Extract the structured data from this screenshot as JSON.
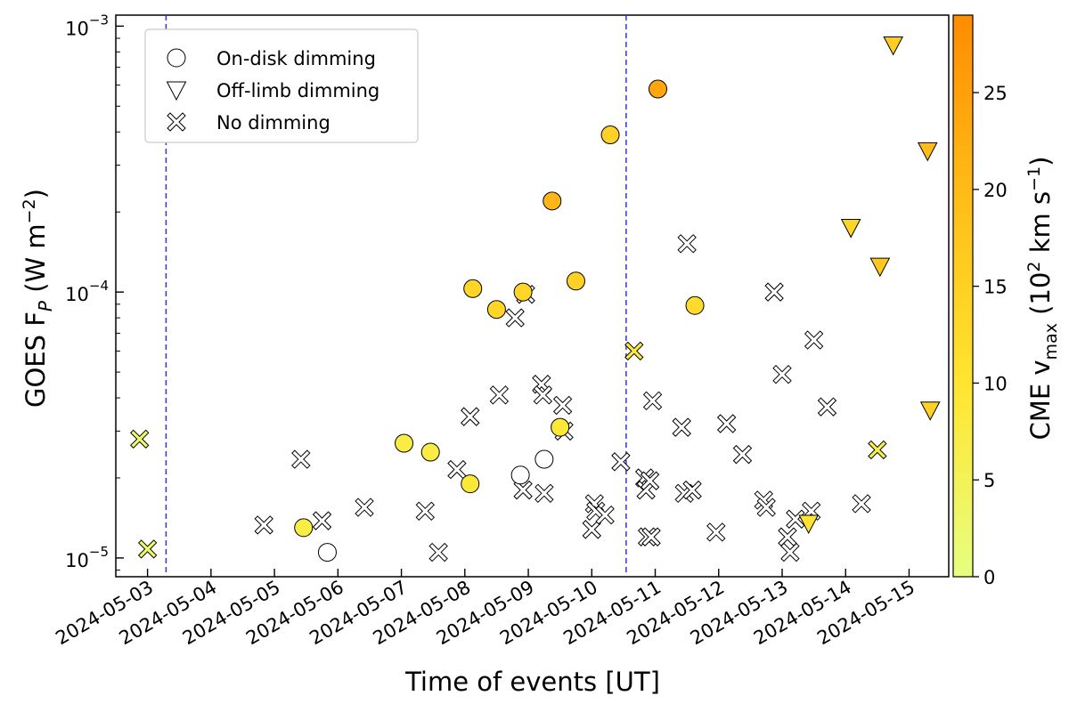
{
  "chart_data": {
    "type": "scatter",
    "xlabel": "Time of events [UT]",
    "ylabel": "GOES F_P (W m^-2)",
    "yscale": "log",
    "ylim": [
      8.5e-06,
      0.0011
    ],
    "y_ticks": [
      {
        "label_base": "10",
        "label_exp": "-3",
        "value": 0.001
      },
      {
        "label_base": "10",
        "label_exp": "-4",
        "value": 0.0001
      },
      {
        "label_base": "10",
        "label_exp": "-5",
        "value": 1e-05
      }
    ],
    "xlim": [
      "2024-05-02 12:00",
      "2024-05-15 15:00"
    ],
    "x_ticks": [
      "2024-05-03",
      "2024-05-04",
      "2024-05-05",
      "2024-05-06",
      "2024-05-07",
      "2024-05-08",
      "2024-05-09",
      "2024-05-10",
      "2024-05-11",
      "2024-05-12",
      "2024-05-13",
      "2024-05-14",
      "2024-05-15"
    ],
    "vertical_lines": [
      "2024-05-03 07:00",
      "2024-05-10 13:00"
    ],
    "vline_color": "#3333dd",
    "colorbar": {
      "label": "CME v_max (10^2 km s^-1)",
      "range": [
        0,
        29
      ],
      "ticks": [
        0,
        5,
        10,
        15,
        20,
        25
      ],
      "colors": [
        "#e6ff80",
        "#ffe633",
        "#ffbf1a",
        "#ff8c00"
      ]
    },
    "legend": {
      "placement": "top-left",
      "entries": [
        {
          "marker": "circle",
          "label": "On-disk dimming"
        },
        {
          "marker": "triangle",
          "label": "Off-limb dimming"
        },
        {
          "marker": "cross",
          "label": "No dimming"
        }
      ]
    },
    "series": [
      {
        "name": "On-disk dimming",
        "marker": "circle",
        "points": [
          {
            "x": "2024-05-05 11:00",
            "y": 1.3e-05,
            "v": 7.5
          },
          {
            "x": "2024-05-05 20:00",
            "y": 1.05e-05,
            "v": null
          },
          {
            "x": "2024-05-07 01:00",
            "y": 2.7e-05,
            "v": 7.5
          },
          {
            "x": "2024-05-07 11:00",
            "y": 2.5e-05,
            "v": 7.5
          },
          {
            "x": "2024-05-08 02:00",
            "y": 1.9e-05,
            "v": 9
          },
          {
            "x": "2024-05-08 03:00",
            "y": 0.000103,
            "v": 14
          },
          {
            "x": "2024-05-08 12:00",
            "y": 8.6e-05,
            "v": 14
          },
          {
            "x": "2024-05-08 21:00",
            "y": 2.05e-05,
            "v": null
          },
          {
            "x": "2024-05-08 22:00",
            "y": 0.0001,
            "v": 14
          },
          {
            "x": "2024-05-09 06:00",
            "y": 2.35e-05,
            "v": null
          },
          {
            "x": "2024-05-09 09:00",
            "y": 0.00022,
            "v": 21
          },
          {
            "x": "2024-05-09 12:00",
            "y": 3.1e-05,
            "v": 9
          },
          {
            "x": "2024-05-09 18:00",
            "y": 0.00011,
            "v": 15
          },
          {
            "x": "2024-05-10 07:00",
            "y": 0.00039,
            "v": 15
          },
          {
            "x": "2024-05-11 01:00",
            "y": 0.00058,
            "v": 24
          },
          {
            "x": "2024-05-11 15:00",
            "y": 8.9e-05,
            "v": 12.5
          }
        ]
      },
      {
        "name": "Off-limb dimming",
        "marker": "triangle",
        "points": [
          {
            "x": "2024-05-13 10:00",
            "y": 1.35e-05,
            "v": 10
          },
          {
            "x": "2024-05-14 02:00",
            "y": 0.000175,
            "v": 14
          },
          {
            "x": "2024-05-14 13:00",
            "y": 0.000125,
            "v": 17
          },
          {
            "x": "2024-05-14 18:00",
            "y": 0.00085,
            "v": 16
          },
          {
            "x": "2024-05-15 07:00",
            "y": 0.00034,
            "v": 20
          },
          {
            "x": "2024-05-15 08:00",
            "y": 3.6e-05,
            "v": 15
          }
        ]
      },
      {
        "name": "No dimming",
        "marker": "cross",
        "points": [
          {
            "x": "2024-05-02 21:00",
            "y": 2.8e-05,
            "v": 2.5
          },
          {
            "x": "2024-05-03 00:00",
            "y": 1.08e-05,
            "v": 2.5
          },
          {
            "x": "2024-05-04 20:00",
            "y": 1.33e-05,
            "v": null
          },
          {
            "x": "2024-05-05 10:00",
            "y": 2.35e-05,
            "v": null
          },
          {
            "x": "2024-05-05 18:00",
            "y": 1.38e-05,
            "v": null
          },
          {
            "x": "2024-05-06 10:00",
            "y": 1.55e-05,
            "v": null
          },
          {
            "x": "2024-05-07 09:00",
            "y": 1.5e-05,
            "v": null
          },
          {
            "x": "2024-05-07 14:00",
            "y": 1.05e-05,
            "v": null
          },
          {
            "x": "2024-05-07 21:00",
            "y": 2.15e-05,
            "v": null
          },
          {
            "x": "2024-05-08 02:00",
            "y": 3.4e-05,
            "v": null
          },
          {
            "x": "2024-05-08 13:00",
            "y": 4.1e-05,
            "v": null
          },
          {
            "x": "2024-05-08 19:00",
            "y": 8e-05,
            "v": null
          },
          {
            "x": "2024-05-08 22:00",
            "y": 1.8e-05,
            "v": null
          },
          {
            "x": "2024-05-08 23:00",
            "y": 9.8e-05,
            "v": null
          },
          {
            "x": "2024-05-09 05:00",
            "y": 4.5e-05,
            "v": null
          },
          {
            "x": "2024-05-09 05:30",
            "y": 4.1e-05,
            "v": null
          },
          {
            "x": "2024-05-09 06:00",
            "y": 1.75e-05,
            "v": null
          },
          {
            "x": "2024-05-09 13:00",
            "y": 3.75e-05,
            "v": null
          },
          {
            "x": "2024-05-09 13:30",
            "y": 3e-05,
            "v": null
          },
          {
            "x": "2024-05-10 00:00",
            "y": 1.28e-05,
            "v": null
          },
          {
            "x": "2024-05-10 01:00",
            "y": 1.6e-05,
            "v": null
          },
          {
            "x": "2024-05-10 01:30",
            "y": 1.5e-05,
            "v": null
          },
          {
            "x": "2024-05-10 05:00",
            "y": 1.45e-05,
            "v": null
          },
          {
            "x": "2024-05-10 11:00",
            "y": 2.3e-05,
            "v": null
          },
          {
            "x": "2024-05-10 16:00",
            "y": 6e-05,
            "v": 8
          },
          {
            "x": "2024-05-10 20:00",
            "y": 2e-05,
            "v": null
          },
          {
            "x": "2024-05-10 20:30",
            "y": 1.8e-05,
            "v": null
          },
          {
            "x": "2024-05-10 21:00",
            "y": 1.2e-05,
            "v": null
          },
          {
            "x": "2024-05-10 22:00",
            "y": 1.95e-05,
            "v": null
          },
          {
            "x": "2024-05-10 22:30",
            "y": 1.2e-05,
            "v": null
          },
          {
            "x": "2024-05-10 23:00",
            "y": 3.9e-05,
            "v": null
          },
          {
            "x": "2024-05-11 10:00",
            "y": 3.1e-05,
            "v": null
          },
          {
            "x": "2024-05-11 11:00",
            "y": 1.75e-05,
            "v": null
          },
          {
            "x": "2024-05-11 12:00",
            "y": 0.000152,
            "v": null
          },
          {
            "x": "2024-05-11 14:00",
            "y": 1.8e-05,
            "v": null
          },
          {
            "x": "2024-05-11 23:00",
            "y": 1.25e-05,
            "v": null
          },
          {
            "x": "2024-05-12 03:00",
            "y": 3.2e-05,
            "v": null
          },
          {
            "x": "2024-05-12 09:00",
            "y": 2.45e-05,
            "v": null
          },
          {
            "x": "2024-05-12 17:00",
            "y": 1.65e-05,
            "v": null
          },
          {
            "x": "2024-05-12 18:00",
            "y": 1.55e-05,
            "v": null
          },
          {
            "x": "2024-05-12 21:00",
            "y": 0.0001,
            "v": null
          },
          {
            "x": "2024-05-13 00:00",
            "y": 4.9e-05,
            "v": null
          },
          {
            "x": "2024-05-13 02:00",
            "y": 1.2e-05,
            "v": null
          },
          {
            "x": "2024-05-13 03:00",
            "y": 1.05e-05,
            "v": null
          },
          {
            "x": "2024-05-13 05:00",
            "y": 1.4e-05,
            "v": null
          },
          {
            "x": "2024-05-13 11:00",
            "y": 1.5e-05,
            "v": null
          },
          {
            "x": "2024-05-13 12:00",
            "y": 6.6e-05,
            "v": null
          },
          {
            "x": "2024-05-13 17:00",
            "y": 3.7e-05,
            "v": null
          },
          {
            "x": "2024-05-14 06:00",
            "y": 1.6e-05,
            "v": null
          },
          {
            "x": "2024-05-14 12:00",
            "y": 2.55e-05,
            "v": 6.5
          }
        ]
      }
    ]
  }
}
